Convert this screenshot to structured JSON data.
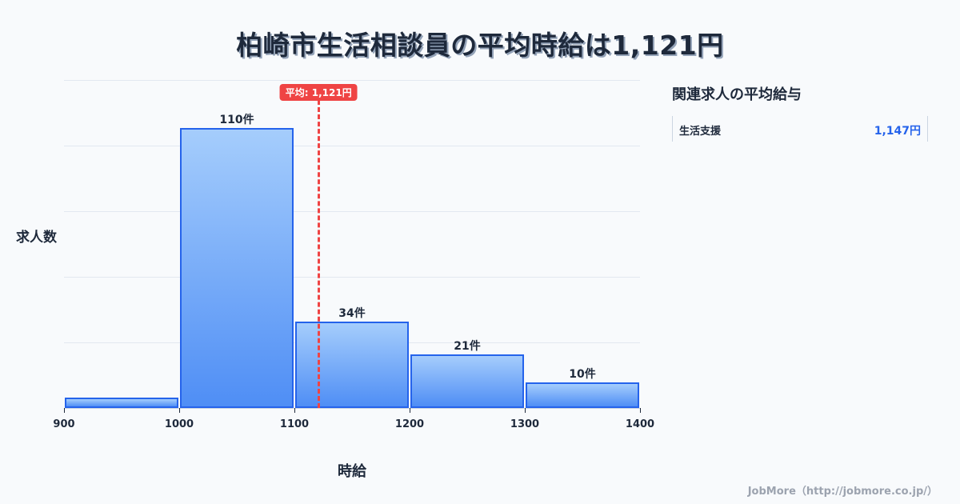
{
  "title": "柏崎市生活相談員の平均時給は1,121円",
  "chart_data": {
    "type": "bar",
    "subtype": "histogram",
    "title": "柏崎市生活相談員の平均時給は1,121円",
    "xlabel": "時給",
    "ylabel": "求人数",
    "bins": [
      [
        900,
        1000
      ],
      [
        1000,
        1100
      ],
      [
        1100,
        1200
      ],
      [
        1200,
        1300
      ],
      [
        1300,
        1400
      ]
    ],
    "categories": [
      "900-1000",
      "1000-1100",
      "1100-1200",
      "1200-1300",
      "1300-1400"
    ],
    "values": [
      4,
      110,
      34,
      21,
      10
    ],
    "value_labels": [
      "",
      "110件",
      "34件",
      "21件",
      "10件"
    ],
    "x_ticks": [
      "900",
      "1000",
      "1100",
      "1200",
      "1300",
      "1400"
    ],
    "xlim": [
      900,
      1400
    ],
    "ylim": [
      0,
      129
    ],
    "grid": true,
    "mean": 1121,
    "mean_label": "平均: 1,121円",
    "colors": {
      "bar_border": "#2563eb",
      "bar_top": "#a5cdfc",
      "bar_bottom": "#4f8ef5",
      "mean_line": "#ef4444"
    }
  },
  "sidebar": {
    "title": "関連求人の平均給与",
    "items": [
      {
        "name": "生活支援",
        "value": "1,147円"
      }
    ]
  },
  "footer": "JobMore（http://jobmore.co.jp/）"
}
